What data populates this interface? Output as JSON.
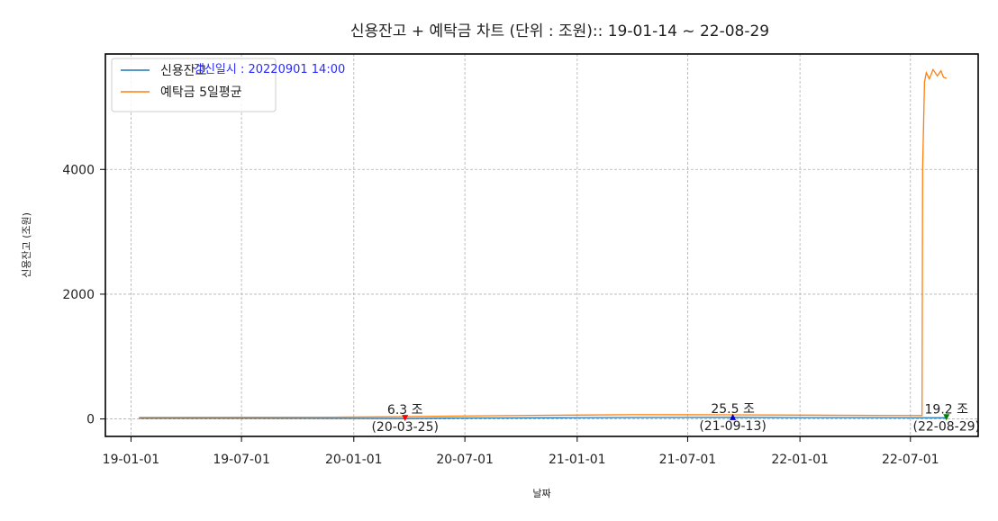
{
  "chart_data": {
    "type": "line",
    "title": "신용잔고 + 예탁금 차트 (단위 : 조원):: 19-01-14 ~ 22-08-29",
    "xlabel": "날짜",
    "ylabel": "신용잔고 (조원)",
    "x_ticks": [
      "19-01-01",
      "19-07-01",
      "20-01-01",
      "20-07-01",
      "21-01-01",
      "21-07-01",
      "22-01-01",
      "22-07-01"
    ],
    "y_ticks": [
      0,
      2000,
      4000
    ],
    "xlim": [
      "2018-11-20",
      "2022-10-20"
    ],
    "ylim": [
      -280,
      5850
    ],
    "grid": true,
    "legend_position": "top-left",
    "updated_text": "갱신일시 : 20220901 14:00",
    "series": [
      {
        "name": "신용잔고",
        "color": "#1f77b4",
        "points": [
          [
            "2019-01-14",
            10
          ],
          [
            "2019-06-01",
            10
          ],
          [
            "2019-12-01",
            9
          ],
          [
            "2020-03-25",
            6.3
          ],
          [
            "2020-06-01",
            13
          ],
          [
            "2020-12-01",
            19
          ],
          [
            "2021-04-01",
            23
          ],
          [
            "2021-09-13",
            25.5
          ],
          [
            "2022-01-01",
            22
          ],
          [
            "2022-05-01",
            21
          ],
          [
            "2022-08-29",
            19.2
          ]
        ]
      },
      {
        "name": "예탁금 5일평균",
        "color": "#ff7f0e",
        "points": [
          [
            "2019-01-14",
            25
          ],
          [
            "2019-06-01",
            26
          ],
          [
            "2019-12-01",
            28
          ],
          [
            "2020-03-15",
            35
          ],
          [
            "2020-06-01",
            45
          ],
          [
            "2020-12-01",
            60
          ],
          [
            "2021-04-01",
            68
          ],
          [
            "2021-09-01",
            66
          ],
          [
            "2022-01-01",
            62
          ],
          [
            "2022-05-01",
            58
          ],
          [
            "2022-07-20",
            55
          ],
          [
            "2022-07-21",
            4000
          ],
          [
            "2022-07-24",
            5400
          ],
          [
            "2022-07-27",
            5550
          ],
          [
            "2022-08-01",
            5450
          ],
          [
            "2022-08-07",
            5600
          ],
          [
            "2022-08-14",
            5500
          ],
          [
            "2022-08-20",
            5580
          ],
          [
            "2022-08-24",
            5480
          ],
          [
            "2022-08-29",
            5460
          ]
        ]
      }
    ],
    "annotations": [
      {
        "date": "2020-03-25",
        "value": 6.3,
        "label": "6.3 조",
        "sublabel": "(20-03-25)",
        "marker": "v",
        "color": "#ff0000"
      },
      {
        "date": "2021-09-13",
        "value": 25.5,
        "label": "25.5 조",
        "sublabel": "(21-09-13)",
        "marker": "^",
        "color": "#0000cc"
      },
      {
        "date": "2022-08-29",
        "value": 19.2,
        "label": "19.2 조",
        "sublabel": "(22-08-29)",
        "marker": "v",
        "color": "#008000"
      }
    ]
  }
}
